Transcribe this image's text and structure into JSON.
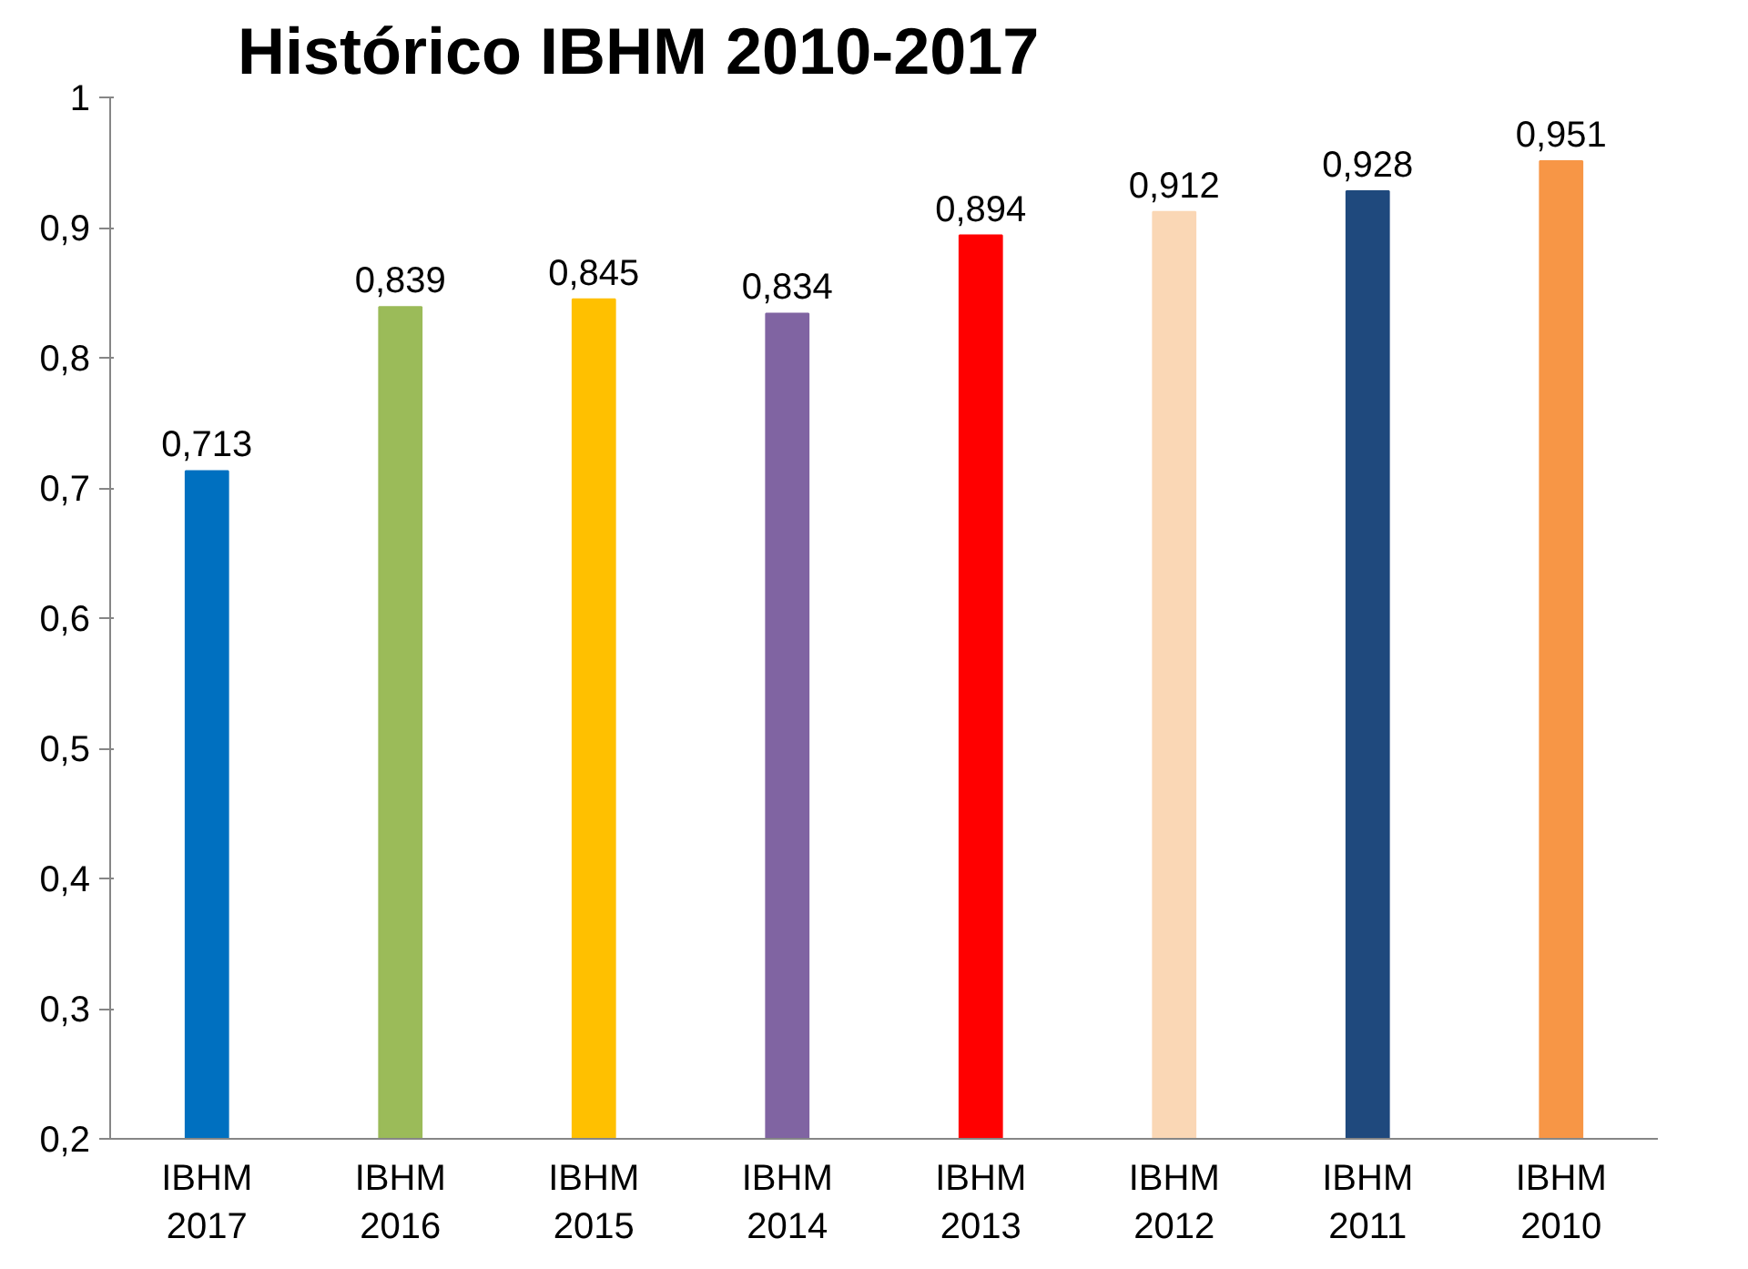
{
  "chart_data": {
    "type": "bar",
    "title": "Histórico IBHM 2010-2017",
    "categories": [
      "IBHM 2017",
      "IBHM 2016",
      "IBHM 2015",
      "IBHM 2014",
      "IBHM 2013",
      "IBHM 2012",
      "IBHM 2011",
      "IBHM 2010"
    ],
    "values": [
      0.713,
      0.839,
      0.845,
      0.834,
      0.894,
      0.912,
      0.928,
      0.951
    ],
    "value_labels": [
      "0,713",
      "0,839",
      "0,845",
      "0,834",
      "0,894",
      "0,912",
      "0,928",
      "0,951"
    ],
    "colors": [
      "#0070c0",
      "#9bbb59",
      "#ffc000",
      "#8064a2",
      "#ff0000",
      "#fad7b5",
      "#1f497d",
      "#f79646"
    ],
    "ylim": [
      0.2,
      1
    ],
    "yticks": [
      {
        "value": 0.2,
        "label": "0,2"
      },
      {
        "value": 0.3,
        "label": "0,3"
      },
      {
        "value": 0.4,
        "label": "0,4"
      },
      {
        "value": 0.5,
        "label": "0,5"
      },
      {
        "value": 0.6,
        "label": "0,6"
      },
      {
        "value": 0.7,
        "label": "0,7"
      },
      {
        "value": 0.8,
        "label": "0,8"
      },
      {
        "value": 0.9,
        "label": "0,9"
      },
      {
        "value": 1,
        "label": "1"
      }
    ],
    "grid": false
  }
}
